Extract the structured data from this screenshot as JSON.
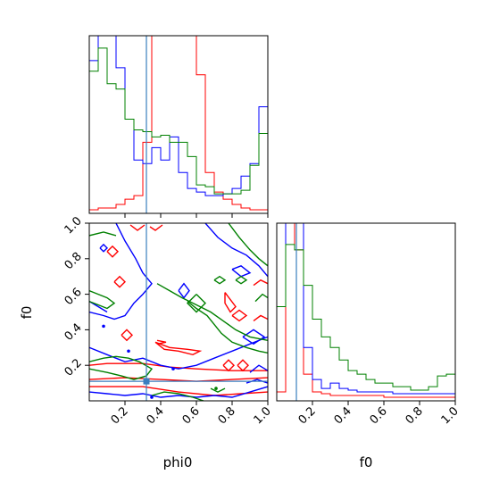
{
  "chart_data": {
    "type": "corner",
    "parameters": [
      "phi0",
      "f0"
    ],
    "truth": {
      "phi0": 0.32,
      "f0": 0.11
    },
    "truth_color": "#3a7ebf",
    "series": [
      {
        "name": "",
        "color": "#0000ff"
      },
      {
        "name": "",
        "color": "#ff0000"
      },
      {
        "name": "",
        "color": "#008000"
      }
    ],
    "hist_phi0": {
      "range": [
        0,
        1
      ],
      "bins": 20,
      "ymax": 1.0,
      "values": {
        "blue": [
          0.86,
          1.12,
          1.3,
          0.82,
          0.53,
          0.3,
          0.28,
          0.37,
          0.3,
          0.43,
          0.23,
          0.14,
          0.12,
          0.1,
          0.1,
          0.11,
          0.14,
          0.21,
          0.28,
          0.6
        ],
        "red": [
          0.02,
          0.03,
          0.03,
          0.05,
          0.08,
          0.1,
          0.4,
          1.3,
          1.6,
          1.5,
          1.3,
          1.2,
          0.78,
          0.23,
          0.12,
          0.08,
          0.05,
          0.03,
          0.02,
          0.02
        ],
        "green": [
          0.8,
          0.93,
          0.73,
          0.7,
          0.53,
          0.47,
          0.46,
          0.43,
          0.44,
          0.4,
          0.4,
          0.32,
          0.16,
          0.15,
          0.11,
          0.11,
          0.11,
          0.13,
          0.27,
          0.45
        ]
      }
    },
    "hist_f0": {
      "range": [
        0,
        1
      ],
      "bins": 20,
      "ymax": 1.0,
      "values": {
        "blue": [
          0.53,
          1.3,
          1.2,
          0.3,
          0.12,
          0.07,
          0.1,
          0.07,
          0.06,
          0.05,
          0.05,
          0.05,
          0.05,
          0.04,
          0.04,
          0.04,
          0.04,
          0.04,
          0.04,
          0.04
        ],
        "red": [
          0.05,
          1.2,
          0.85,
          0.15,
          0.05,
          0.04,
          0.03,
          0.03,
          0.03,
          0.03,
          0.03,
          0.03,
          0.02,
          0.02,
          0.02,
          0.02,
          0.02,
          0.02,
          0.02,
          0.02
        ],
        "green": [
          0.53,
          0.88,
          0.85,
          0.65,
          0.46,
          0.36,
          0.3,
          0.23,
          0.17,
          0.15,
          0.12,
          0.1,
          0.1,
          0.08,
          0.08,
          0.06,
          0.06,
          0.08,
          0.14,
          0.15
        ]
      }
    },
    "xlim": [
      0,
      1
    ],
    "ylim": [
      0,
      1
    ],
    "phi0_ticks": [
      "0.2",
      "0.4",
      "0.6",
      "0.8",
      "1.0"
    ],
    "f0_ticks": [
      "0.2",
      "0.4",
      "0.6",
      "0.8",
      "1.0"
    ],
    "xlabel_left": "phi0",
    "xlabel_right": "f0",
    "ylabel": "f0",
    "contours": {
      "red": [
        [
          [
            0.1,
            0.84
          ],
          [
            0.13,
            0.87
          ],
          [
            0.16,
            0.84
          ],
          [
            0.13,
            0.81
          ],
          [
            0.1,
            0.84
          ]
        ],
        [
          [
            0.14,
            0.67
          ],
          [
            0.17,
            0.7
          ],
          [
            0.2,
            0.67
          ],
          [
            0.17,
            0.64
          ],
          [
            0.14,
            0.67
          ]
        ],
        [
          [
            0.18,
            0.37
          ],
          [
            0.21,
            0.4
          ],
          [
            0.24,
            0.37
          ],
          [
            0.21,
            0.34
          ],
          [
            0.18,
            0.37
          ]
        ],
        [
          [
            0.0,
            0.2
          ],
          [
            0.1,
            0.21
          ],
          [
            0.3,
            0.21
          ],
          [
            0.45,
            0.19
          ],
          [
            0.6,
            0.18
          ],
          [
            0.8,
            0.17
          ],
          [
            1.0,
            0.17
          ]
        ],
        [
          [
            0.0,
            0.12
          ],
          [
            0.2,
            0.13
          ],
          [
            0.4,
            0.12
          ],
          [
            0.6,
            0.11
          ],
          [
            0.8,
            0.12
          ],
          [
            1.0,
            0.13
          ]
        ],
        [
          [
            0.0,
            0.08
          ],
          [
            0.3,
            0.08
          ],
          [
            0.5,
            0.05
          ],
          [
            0.7,
            0.03
          ],
          [
            0.85,
            0.04
          ],
          [
            1.0,
            0.05
          ]
        ],
        [
          [
            0.37,
            0.33
          ],
          [
            0.45,
            0.3
          ],
          [
            0.55,
            0.29
          ],
          [
            0.62,
            0.28
          ],
          [
            0.58,
            0.26
          ],
          [
            0.5,
            0.28
          ],
          [
            0.42,
            0.29
          ],
          [
            0.37,
            0.33
          ]
        ],
        [
          [
            0.38,
            0.34
          ],
          [
            0.43,
            0.33
          ],
          [
            0.38,
            0.32
          ]
        ],
        [
          [
            0.23,
            0.99
          ],
          [
            0.27,
            0.96
          ],
          [
            0.31,
            0.99
          ]
        ],
        [
          [
            0.34,
            0.98
          ],
          [
            0.37,
            0.96
          ],
          [
            0.41,
            0.99
          ]
        ],
        [
          [
            0.76,
            0.61
          ],
          [
            0.79,
            0.57
          ],
          [
            0.82,
            0.53
          ],
          [
            0.79,
            0.5
          ],
          [
            0.76,
            0.55
          ],
          [
            0.76,
            0.61
          ]
        ],
        [
          [
            0.8,
            0.48
          ],
          [
            0.84,
            0.51
          ],
          [
            0.88,
            0.48
          ],
          [
            0.84,
            0.45
          ],
          [
            0.8,
            0.48
          ]
        ],
        [
          [
            0.75,
            0.2
          ],
          [
            0.78,
            0.23
          ],
          [
            0.81,
            0.2
          ],
          [
            0.78,
            0.17
          ],
          [
            0.75,
            0.2
          ]
        ],
        [
          [
            0.83,
            0.2
          ],
          [
            0.86,
            0.23
          ],
          [
            0.89,
            0.2
          ],
          [
            0.86,
            0.17
          ],
          [
            0.83,
            0.2
          ]
        ],
        [
          [
            0.92,
            0.65
          ],
          [
            0.96,
            0.68
          ],
          [
            1.0,
            0.66
          ]
        ],
        [
          [
            0.92,
            0.45
          ],
          [
            0.96,
            0.48
          ],
          [
            1.0,
            0.46
          ]
        ]
      ],
      "blue": [
        [
          [
            0.15,
            1.0
          ],
          [
            0.2,
            0.9
          ],
          [
            0.26,
            0.8
          ],
          [
            0.3,
            0.72
          ],
          [
            0.35,
            0.66
          ],
          [
            0.3,
            0.6
          ],
          [
            0.25,
            0.55
          ],
          [
            0.2,
            0.48
          ],
          [
            0.14,
            0.46
          ],
          [
            0.08,
            0.48
          ],
          [
            0.0,
            0.5
          ]
        ],
        [
          [
            0.0,
            0.3
          ],
          [
            0.1,
            0.26
          ],
          [
            0.2,
            0.22
          ],
          [
            0.3,
            0.24
          ],
          [
            0.4,
            0.2
          ],
          [
            0.5,
            0.18
          ],
          [
            0.6,
            0.2
          ],
          [
            0.7,
            0.24
          ],
          [
            0.8,
            0.28
          ],
          [
            0.9,
            0.32
          ],
          [
            1.0,
            0.36
          ]
        ],
        [
          [
            0.0,
            0.05
          ],
          [
            0.1,
            0.04
          ],
          [
            0.2,
            0.03
          ],
          [
            0.3,
            0.04
          ],
          [
            0.4,
            0.02
          ],
          [
            0.5,
            0.03
          ],
          [
            0.6,
            0.02
          ],
          [
            0.7,
            0.03
          ],
          [
            0.8,
            0.02
          ],
          [
            0.9,
            0.05
          ],
          [
            1.0,
            0.08
          ]
        ],
        [
          [
            0.65,
            1.0
          ],
          [
            0.72,
            0.92
          ],
          [
            0.8,
            0.86
          ],
          [
            0.88,
            0.82
          ],
          [
            0.95,
            0.76
          ],
          [
            1.0,
            0.7
          ]
        ],
        [
          [
            0.5,
            0.62
          ],
          [
            0.53,
            0.66
          ],
          [
            0.56,
            0.62
          ],
          [
            0.53,
            0.58
          ],
          [
            0.5,
            0.62
          ]
        ],
        [
          [
            0.8,
            0.74
          ],
          [
            0.85,
            0.76
          ],
          [
            0.9,
            0.72
          ],
          [
            0.85,
            0.7
          ],
          [
            0.8,
            0.74
          ]
        ],
        [
          [
            0.86,
            0.36
          ],
          [
            0.92,
            0.4
          ],
          [
            0.98,
            0.36
          ],
          [
            0.92,
            0.32
          ],
          [
            0.86,
            0.36
          ]
        ],
        [
          [
            0.9,
            0.16
          ],
          [
            0.95,
            0.2
          ],
          [
            1.0,
            0.17
          ]
        ],
        [
          [
            0.88,
            0.1
          ],
          [
            0.94,
            0.12
          ],
          [
            1.0,
            0.1
          ]
        ],
        [
          [
            0.06,
            0.86
          ],
          [
            0.08,
            0.88
          ],
          [
            0.1,
            0.86
          ],
          [
            0.08,
            0.84
          ],
          [
            0.06,
            0.86
          ]
        ],
        [
          [
            0.0,
            0.56
          ],
          [
            0.05,
            0.53
          ],
          [
            0.1,
            0.5
          ]
        ]
      ],
      "green": [
        [
          [
            0.0,
            0.62
          ],
          [
            0.05,
            0.6
          ],
          [
            0.1,
            0.58
          ],
          [
            0.14,
            0.55
          ],
          [
            0.1,
            0.52
          ],
          [
            0.05,
            0.54
          ],
          [
            0.0,
            0.56
          ]
        ],
        [
          [
            0.0,
            0.93
          ],
          [
            0.08,
            0.95
          ],
          [
            0.15,
            0.93
          ]
        ],
        [
          [
            0.38,
            0.66
          ],
          [
            0.45,
            0.62
          ],
          [
            0.52,
            0.58
          ],
          [
            0.6,
            0.54
          ],
          [
            0.68,
            0.5
          ],
          [
            0.75,
            0.45
          ],
          [
            0.82,
            0.4
          ],
          [
            0.9,
            0.36
          ],
          [
            1.0,
            0.34
          ]
        ],
        [
          [
            0.55,
            0.56
          ],
          [
            0.6,
            0.52
          ],
          [
            0.66,
            0.48
          ],
          [
            0.7,
            0.43
          ],
          [
            0.74,
            0.38
          ],
          [
            0.8,
            0.33
          ],
          [
            0.88,
            0.3
          ],
          [
            0.95,
            0.28
          ],
          [
            1.0,
            0.27
          ]
        ],
        [
          [
            0.0,
            0.22
          ],
          [
            0.08,
            0.24
          ],
          [
            0.15,
            0.25
          ],
          [
            0.22,
            0.24
          ],
          [
            0.28,
            0.22
          ],
          [
            0.35,
            0.18
          ],
          [
            0.32,
            0.14
          ],
          [
            0.25,
            0.12
          ],
          [
            0.18,
            0.14
          ],
          [
            0.1,
            0.16
          ],
          [
            0.0,
            0.18
          ]
        ],
        [
          [
            0.35,
            0.03
          ],
          [
            0.42,
            0.05
          ],
          [
            0.5,
            0.04
          ],
          [
            0.58,
            0.02
          ],
          [
            0.64,
            0.0
          ]
        ],
        [
          [
            0.68,
            0.07
          ],
          [
            0.72,
            0.05
          ],
          [
            0.76,
            0.07
          ]
        ],
        [
          [
            0.78,
            1.0
          ],
          [
            0.84,
            0.92
          ],
          [
            0.9,
            0.85
          ],
          [
            0.95,
            0.8
          ],
          [
            1.0,
            0.76
          ]
        ],
        [
          [
            0.7,
            0.68
          ],
          [
            0.73,
            0.7
          ],
          [
            0.76,
            0.68
          ],
          [
            0.73,
            0.66
          ],
          [
            0.7,
            0.68
          ]
        ],
        [
          [
            0.82,
            0.68
          ],
          [
            0.85,
            0.7
          ],
          [
            0.88,
            0.68
          ],
          [
            0.85,
            0.66
          ],
          [
            0.82,
            0.68
          ]
        ],
        [
          [
            0.6,
            0.6
          ],
          [
            0.65,
            0.55
          ],
          [
            0.6,
            0.5
          ],
          [
            0.55,
            0.55
          ],
          [
            0.6,
            0.6
          ]
        ],
        [
          [
            0.93,
            0.56
          ],
          [
            0.97,
            0.6
          ],
          [
            1.0,
            0.58
          ]
        ]
      ]
    }
  }
}
